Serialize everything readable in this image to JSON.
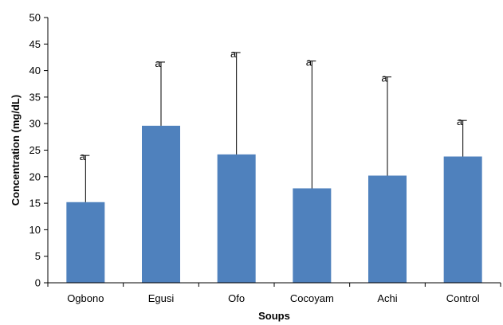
{
  "chart_data": {
    "type": "bar",
    "title": "",
    "xlabel": "Soups",
    "ylabel": "Concentration (mg/dL)",
    "categories": [
      "Ogbono",
      "Egusi",
      "Ofo",
      "Cocoyam",
      "Achi",
      "Control"
    ],
    "values": [
      15.2,
      29.6,
      24.2,
      17.8,
      20.2,
      23.8
    ],
    "error_upper": [
      24.0,
      41.6,
      43.4,
      41.8,
      38.8,
      30.6
    ],
    "significance_labels": [
      "a",
      "a",
      "a",
      "a",
      "a",
      "a"
    ],
    "ylim": [
      0,
      50
    ],
    "yticks": [
      0,
      5,
      10,
      15,
      20,
      25,
      30,
      35,
      40,
      45,
      50
    ],
    "grid": false,
    "legend": "none",
    "bar_color": "#4F81BD"
  }
}
